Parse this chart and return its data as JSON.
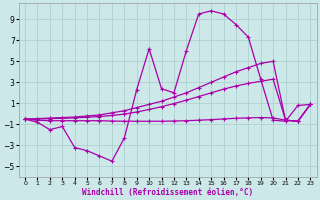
{
  "background_color": "#cce8e8",
  "grid_color": "#aacccc",
  "line_color": "#aa00aa",
  "x_label": "Windchill (Refroidissement éolien,°C)",
  "y_ticks": [
    -5,
    -3,
    -1,
    1,
    3,
    5,
    7,
    9
  ],
  "x_ticks": [
    0,
    1,
    2,
    3,
    4,
    5,
    6,
    7,
    8,
    9,
    10,
    11,
    12,
    13,
    14,
    15,
    16,
    17,
    18,
    19,
    20,
    21,
    22,
    23
  ],
  "xlim": [
    -0.5,
    23.5
  ],
  "ylim": [
    -6.0,
    10.5
  ],
  "line1_x": [
    0,
    1,
    2,
    3,
    4,
    5,
    6,
    7,
    8,
    9,
    10,
    11,
    12,
    13,
    14,
    15,
    16,
    17,
    18,
    19,
    20,
    21,
    22,
    23
  ],
  "line1_y": [
    -0.5,
    -0.8,
    -1.5,
    -1.2,
    -3.2,
    -3.5,
    -4.0,
    -4.5,
    -2.3,
    2.3,
    6.2,
    2.4,
    2.0,
    6.0,
    9.5,
    9.8,
    9.5,
    8.5,
    7.3,
    3.3,
    -0.6,
    -0.7,
    0.8,
    0.9
  ],
  "line2_x": [
    0,
    1,
    2,
    3,
    4,
    5,
    6,
    7,
    8,
    9,
    10,
    11,
    12,
    13,
    14,
    15,
    16,
    17,
    18,
    19,
    20,
    21,
    22,
    23
  ],
  "line2_y": [
    -0.5,
    -0.45,
    -0.4,
    -0.35,
    -0.3,
    -0.2,
    -0.1,
    0.1,
    0.3,
    0.6,
    0.9,
    1.2,
    1.6,
    2.0,
    2.5,
    3.0,
    3.5,
    4.0,
    4.4,
    4.8,
    5.0,
    -0.6,
    -0.7,
    0.9
  ],
  "line3_x": [
    0,
    1,
    2,
    3,
    4,
    5,
    6,
    7,
    8,
    9,
    10,
    11,
    12,
    13,
    14,
    15,
    16,
    17,
    18,
    19,
    20,
    21,
    22,
    23
  ],
  "line3_y": [
    -0.5,
    -0.48,
    -0.45,
    -0.42,
    -0.38,
    -0.32,
    -0.25,
    -0.15,
    -0.02,
    0.18,
    0.42,
    0.68,
    0.98,
    1.3,
    1.65,
    2.0,
    2.35,
    2.65,
    2.9,
    3.1,
    3.3,
    -0.6,
    -0.7,
    0.9
  ],
  "line4_x": [
    0,
    1,
    2,
    3,
    4,
    5,
    6,
    7,
    8,
    9,
    10,
    11,
    12,
    13,
    14,
    15,
    16,
    17,
    18,
    19,
    20,
    21,
    22,
    23
  ],
  "line4_y": [
    -0.5,
    -0.6,
    -0.65,
    -0.65,
    -0.65,
    -0.65,
    -0.65,
    -0.68,
    -0.7,
    -0.7,
    -0.7,
    -0.7,
    -0.68,
    -0.65,
    -0.6,
    -0.55,
    -0.48,
    -0.42,
    -0.38,
    -0.35,
    -0.38,
    -0.6,
    -0.7,
    0.9
  ]
}
